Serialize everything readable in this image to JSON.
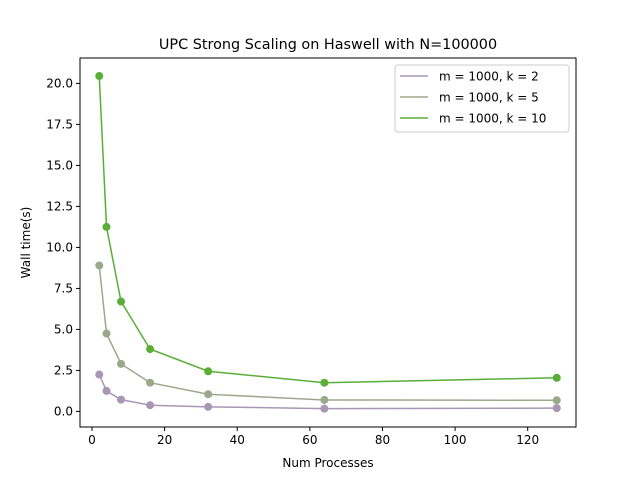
{
  "chart_data": {
    "type": "line",
    "title": "UPC Strong Scaling on Haswell with N=100000",
    "xlabel": "Num Processes",
    "ylabel": "Wall time(s)",
    "xlim": [
      -3.3,
      133.3
    ],
    "ylim": [
      -0.95,
      21.55
    ],
    "xticks": [
      0,
      20,
      40,
      60,
      80,
      100,
      120
    ],
    "xtick_labels": [
      "0",
      "20",
      "40",
      "60",
      "80",
      "100",
      "120"
    ],
    "yticks": [
      0.0,
      2.5,
      5.0,
      7.5,
      10.0,
      12.5,
      15.0,
      17.5,
      20.0
    ],
    "ytick_labels": [
      "0.0",
      "2.5",
      "5.0",
      "7.5",
      "10.0",
      "12.5",
      "15.0",
      "17.5",
      "20.0"
    ],
    "grid": false,
    "legend_position": "top-right",
    "x": [
      2,
      4,
      8,
      16,
      32,
      64,
      128
    ],
    "series": [
      {
        "name": "m = 1000, k = 2",
        "color": "#a896b4",
        "values": [
          2.25,
          1.25,
          0.72,
          0.38,
          0.28,
          0.17,
          0.2
        ]
      },
      {
        "name": "m = 1000, k = 5",
        "color": "#9aa98a",
        "values": [
          8.9,
          4.75,
          2.9,
          1.75,
          1.05,
          0.7,
          0.68
        ]
      },
      {
        "name": "m = 1000, k = 10",
        "color": "#5aae37",
        "values": [
          20.45,
          11.25,
          6.7,
          3.8,
          2.45,
          1.75,
          2.05
        ]
      }
    ]
  }
}
